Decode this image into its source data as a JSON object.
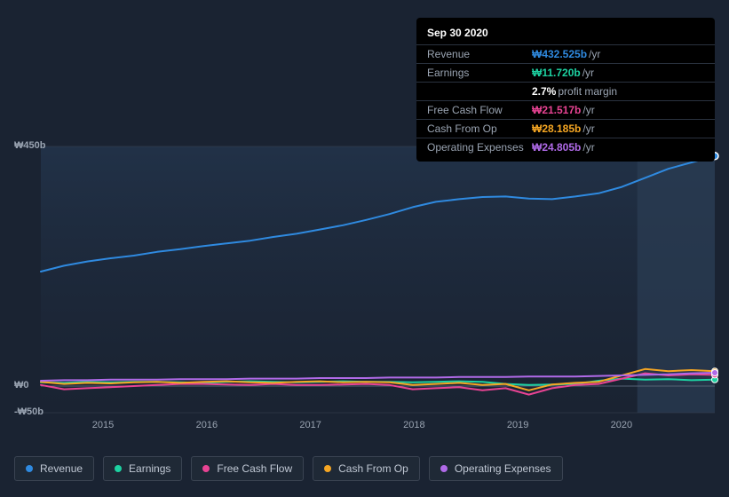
{
  "chart": {
    "type": "line",
    "background_color": "#1a2332",
    "plot_bg_highlight": "#223044",
    "forecast_band_x": [
      0.885,
      1.0
    ],
    "grid_color": "#3a4352",
    "ylim": [
      -50,
      450
    ],
    "yticks": [
      {
        "v": 450,
        "label": "₩450b"
      },
      {
        "v": 0,
        "label": "₩0"
      },
      {
        "v": -50,
        "label": "-₩50b"
      }
    ],
    "xlim": [
      2014.4,
      2020.9
    ],
    "xticks": [
      2015,
      2016,
      2017,
      2018,
      2019,
      2020
    ],
    "line_width": 2,
    "marker_x": 2020.75,
    "series": [
      {
        "id": "revenue",
        "name": "Revenue",
        "color": "#2f8ae0",
        "y": [
          215,
          226,
          234,
          240,
          245,
          252,
          257,
          263,
          268,
          273,
          280,
          286,
          294,
          302,
          312,
          323,
          336,
          346,
          351,
          355,
          356,
          352,
          351,
          356,
          362,
          374,
          391,
          408,
          420,
          432
        ]
      },
      {
        "id": "earnings",
        "name": "Earnings",
        "color": "#1dd1a1",
        "y": [
          7,
          6,
          8,
          7,
          8,
          8,
          7,
          6,
          8,
          9,
          8,
          7,
          8,
          9,
          8,
          8,
          7,
          8,
          9,
          8,
          4,
          2,
          3,
          4,
          10,
          14,
          12,
          13,
          11,
          12
        ]
      },
      {
        "id": "fcf",
        "name": "Free Cash Flow",
        "color": "#e84393",
        "y": [
          2,
          -6,
          -4,
          -2,
          0,
          2,
          4,
          4,
          3,
          2,
          4,
          2,
          2,
          3,
          4,
          2,
          -6,
          -4,
          -2,
          -8,
          -4,
          -16,
          -4,
          2,
          4,
          14,
          24,
          20,
          22,
          21
        ]
      },
      {
        "id": "cfo",
        "name": "Cash From Op",
        "color": "#f5a623",
        "y": [
          8,
          4,
          6,
          5,
          7,
          8,
          6,
          8,
          9,
          7,
          6,
          8,
          9,
          7,
          8,
          7,
          2,
          4,
          6,
          2,
          4,
          -8,
          3,
          6,
          8,
          20,
          32,
          28,
          30,
          28
        ]
      },
      {
        "id": "opex",
        "name": "Operating Expenses",
        "color": "#b06ae8",
        "y": [
          10,
          11,
          11,
          12,
          12,
          12,
          13,
          13,
          13,
          14,
          14,
          14,
          15,
          15,
          15,
          16,
          16,
          16,
          17,
          17,
          17,
          18,
          18,
          18,
          19,
          20,
          21,
          22,
          24,
          25
        ]
      }
    ]
  },
  "tooltip": {
    "date": "Sep 30 2020",
    "rows": [
      {
        "label": "Revenue",
        "value": "₩432.525b",
        "unit": "/yr",
        "color": "#2f8ae0"
      },
      {
        "label": "Earnings",
        "value": "₩11.720b",
        "unit": "/yr",
        "color": "#1dd1a1"
      },
      {
        "label": "",
        "value": "2.7%",
        "unit": "profit margin",
        "kind": "margin"
      },
      {
        "label": "Free Cash Flow",
        "value": "₩21.517b",
        "unit": "/yr",
        "color": "#e84393"
      },
      {
        "label": "Cash From Op",
        "value": "₩28.185b",
        "unit": "/yr",
        "color": "#f5a623"
      },
      {
        "label": "Operating Expenses",
        "value": "₩24.805b",
        "unit": "/yr",
        "color": "#b06ae8"
      }
    ]
  },
  "legend": [
    {
      "id": "revenue",
      "label": "Revenue",
      "color": "#2f8ae0"
    },
    {
      "id": "earnings",
      "label": "Earnings",
      "color": "#1dd1a1"
    },
    {
      "id": "fcf",
      "label": "Free Cash Flow",
      "color": "#e84393"
    },
    {
      "id": "cfo",
      "label": "Cash From Op",
      "color": "#f5a623"
    },
    {
      "id": "opex",
      "label": "Operating Expenses",
      "color": "#b06ae8"
    }
  ]
}
